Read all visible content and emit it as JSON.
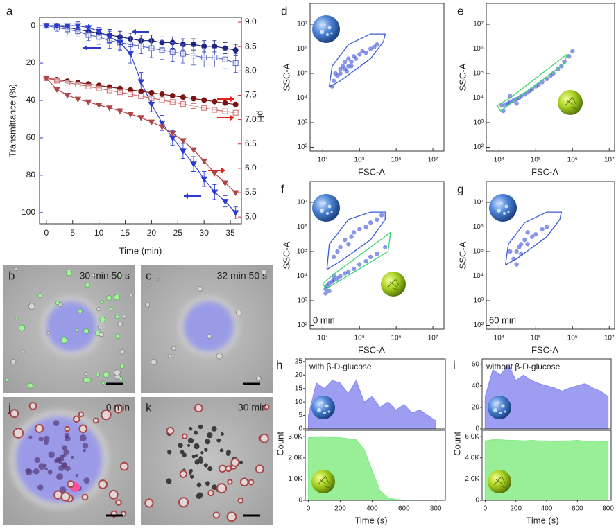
{
  "chart_data": [
    {
      "type": "line",
      "panel": "a",
      "xlabel": "Time (min)",
      "ylabel": "Transmittance (%)",
      "y2label": "pH",
      "ycolor": "#2b3bd1",
      "y2color": "#e8201a",
      "x": [
        0,
        2,
        4,
        6,
        8,
        10,
        12,
        14,
        16,
        18,
        20,
        22,
        24,
        26,
        28,
        30,
        32,
        34,
        36
      ],
      "xlim": [
        -1.3,
        37.1
      ],
      "xticks": [
        0,
        5,
        10,
        15,
        20,
        25,
        30,
        35
      ],
      "ylim": [
        106,
        -4.5
      ],
      "yticks": [
        0,
        20,
        40,
        60,
        80,
        100
      ],
      "y2lim": [
        4.86,
        9.1
      ],
      "y2ticks": [
        {
          "value": 5,
          "label": "5.0"
        },
        5.5,
        {
          "value": 6,
          "label": "6.0"
        },
        6.5,
        {
          "value": 7,
          "label": "7.0"
        },
        7.5,
        {
          "value": 8,
          "label": "8.0"
        },
        8.5,
        {
          "value": 9,
          "label": "9.0"
        }
      ],
      "series": [
        {
          "color": "#1c2580",
          "marker": "circle",
          "filled": true,
          "values": [
            0,
            0,
            1,
            2,
            3,
            4,
            5,
            6,
            7,
            8,
            8,
            9,
            9,
            10,
            10,
            11,
            11,
            12,
            13
          ],
          "errors": [
            1,
            1,
            2,
            2,
            2,
            3,
            3,
            3,
            3,
            3,
            3,
            3,
            3,
            3,
            3,
            3,
            3,
            3,
            3
          ]
        },
        {
          "color": "#5566c8",
          "marker": "square",
          "filled": false,
          "values": [
            0,
            1,
            2,
            3,
            5,
            6,
            8,
            9,
            10,
            11,
            12,
            13,
            14,
            15,
            16,
            17,
            17,
            18,
            20
          ],
          "errors": [
            1,
            2,
            3,
            3,
            3,
            4,
            4,
            4,
            4,
            4,
            5,
            5,
            5,
            5,
            5,
            5,
            5,
            5,
            5
          ]
        },
        {
          "color": "#2b3bd1",
          "marker": "triangle-down",
          "filled": true,
          "values": [
            0,
            0,
            0,
            0,
            1,
            3,
            6,
            9,
            15,
            30,
            42,
            52,
            60,
            67,
            74,
            82,
            89,
            94,
            100
          ],
          "errors": [
            1,
            1,
            1,
            2,
            2,
            2,
            3,
            4,
            5,
            5,
            4,
            4,
            4,
            4,
            4,
            4,
            4,
            3,
            3
          ]
        },
        {
          "color": "#7a1515",
          "marker": "circle",
          "filled": true,
          "axis": "y2",
          "values": [
            7.85,
            7.82,
            7.79,
            7.76,
            7.73,
            7.7,
            7.67,
            7.64,
            7.61,
            7.58,
            7.55,
            7.52,
            7.49,
            7.46,
            7.43,
            7.4,
            7.37,
            7.34,
            7.31
          ]
        },
        {
          "color": "#d26a6a",
          "marker": "square",
          "filled": false,
          "axis": "y2",
          "values": [
            7.85,
            7.8,
            7.76,
            7.72,
            7.68,
            7.64,
            7.6,
            7.56,
            7.52,
            7.48,
            7.44,
            7.4,
            7.36,
            7.32,
            7.28,
            7.24,
            7.2,
            7.17,
            7.14
          ]
        },
        {
          "color": "#b04545",
          "marker": "triangle-down",
          "filled": true,
          "axis": "y2",
          "values": [
            7.85,
            7.62,
            7.5,
            7.42,
            7.36,
            7.3,
            7.24,
            7.18,
            7.11,
            7.04,
            6.95,
            6.85,
            6.72,
            6.57,
            6.38,
            6.15,
            5.9,
            5.7,
            5.5
          ]
        }
      ]
    },
    {
      "type": "scatter",
      "panel": "d",
      "xlabel": "FSC-A",
      "ylabel": "SSC-A",
      "xscale": "log",
      "yscale": "log",
      "color": "#2a3fd6",
      "xlim": [
        4500,
        20000000.0
      ],
      "ylim": [
        70,
        70000000.0
      ],
      "xticks": [
        {
          "value": 10000.0,
          "label": "10⁴"
        },
        {
          "value": 100000.0,
          "label": "10⁵"
        },
        {
          "value": 1000000.0,
          "label": "10⁶"
        },
        {
          "value": 10000000.0,
          "label": "10⁷"
        }
      ],
      "yticks": [
        {
          "value": 100.0,
          "label": "10²"
        },
        {
          "value": 1000.0,
          "label": "10³"
        },
        {
          "value": 10000.0,
          "label": "10⁴"
        },
        {
          "value": 100000.0,
          "label": "10⁵"
        },
        {
          "value": 1000000.0,
          "label": "10⁶"
        },
        {
          "value": 10000000.0,
          "label": "10⁷"
        }
      ],
      "x": [
        20000.0,
        25000.0,
        30000.0,
        30000.0,
        35000.0,
        40000.0,
        40000.0,
        50000.0,
        50000.0,
        60000.0,
        70000.0,
        80000.0,
        100000.0,
        120000.0,
        150000.0,
        200000.0,
        250000.0,
        300000.0,
        18000.0,
        22000.0,
        45000.0,
        60000.0
      ],
      "values": [
        50000.0,
        80000.0,
        100000.0,
        150000.0,
        200000.0,
        150000.0,
        300000.0,
        200000.0,
        400000.0,
        300000.0,
        500000.0,
        400000.0,
        600000.0,
        800000.0,
        700000.0,
        1000000.0,
        1200000.0,
        1500000.0,
        30000.0,
        100000.0,
        120000.0,
        200000.0
      ],
      "gates": [
        {
          "color": "#3a5bd8",
          "x": [
            15000.0,
            18000.0,
            50000.0,
            200000.0,
            500000.0,
            450000.0,
            200000.0,
            30000.0,
            16000.0
          ],
          "y": [
            30000.0,
            200000.0,
            1500000.0,
            4000000.0,
            4000000.0,
            2000000.0,
            400000.0,
            50000.0,
            30000.0
          ]
        }
      ]
    },
    {
      "type": "scatter",
      "panel": "e",
      "xlabel": "FSC-A",
      "ylabel": "SSC-A",
      "xscale": "log",
      "yscale": "log",
      "color": "#2a3fd6",
      "xlim": [
        4500,
        14000000.0
      ],
      "ylim": [
        70,
        70000000.0
      ],
      "xticks": [
        {
          "value": 10000.0,
          "label": "10⁴"
        },
        {
          "value": 100000.0,
          "label": "10⁵"
        },
        {
          "value": 1000000.0,
          "label": "10⁶"
        },
        {
          "value": 10000000.0,
          "label": "10⁷"
        }
      ],
      "yticks": [
        {
          "value": 100.0,
          "label": "10²"
        },
        {
          "value": 1000.0,
          "label": "10³"
        },
        {
          "value": 10000.0,
          "label": "10⁴"
        },
        {
          "value": 100000.0,
          "label": "10⁵"
        },
        {
          "value": 1000000.0,
          "label": "10⁶"
        },
        {
          "value": 10000000.0,
          "label": "10⁷"
        }
      ],
      "x": [
        12000.0,
        15000.0,
        18000.0,
        20000.0,
        25000.0,
        30000.0,
        35000.0,
        40000.0,
        50000.0,
        60000.0,
        70000.0,
        80000.0,
        100000.0,
        120000.0,
        150000.0,
        200000.0,
        250000.0,
        300000.0,
        400000.0,
        500000.0,
        600000.0,
        800000.0,
        1000000.0,
        13000.0,
        20000.0,
        30000.0
      ],
      "values": [
        5000.0,
        5500.0,
        6000.0,
        7000.0,
        8000.0,
        9000.0,
        10000.0,
        12000.0,
        14000.0,
        17000.0,
        20000.0,
        23000.0,
        30000.0,
        35000.0,
        45000.0,
        60000.0,
        80000.0,
        100000.0,
        150000.0,
        200000.0,
        300000.0,
        500000.0,
        800000.0,
        3000.0,
        12000.0,
        6000.0
      ],
      "gates": [
        {
          "color": "#39d46a",
          "x": [
            9000.0,
            11000.0,
            600000.0,
            700000.0,
            20000.0
          ],
          "y": [
            5000.0,
            3000.0,
            250000.0,
            600000.0,
            10000.0
          ]
        }
      ]
    },
    {
      "type": "scatter",
      "panel": "f",
      "xlabel": "FSC-A",
      "ylabel": "SSC-A",
      "xscale": "log",
      "yscale": "log",
      "color": "#2a3fd6",
      "annotation": "0 min",
      "xlim": [
        4500,
        20000000.0
      ],
      "ylim": [
        70,
        70000000.0
      ],
      "xticks": [
        {
          "value": 10000.0,
          "label": "10⁴"
        },
        {
          "value": 100000.0,
          "label": "10⁵"
        },
        {
          "value": 1000000.0,
          "label": "10⁶"
        },
        {
          "value": 10000000.0,
          "label": "10⁷"
        }
      ],
      "yticks": [
        {
          "value": 100.0,
          "label": "10²"
        },
        {
          "value": 1000.0,
          "label": "10³"
        },
        {
          "value": 10000.0,
          "label": "10⁴"
        },
        {
          "value": 100000.0,
          "label": "10⁵"
        },
        {
          "value": 1000000.0,
          "label": "10⁶"
        },
        {
          "value": 10000000.0,
          "label": "10⁷"
        }
      ],
      "x": [
        20000.0,
        30000.0,
        40000.0,
        50000.0,
        70000.0,
        100000.0,
        150000.0,
        200000.0,
        300000.0,
        400000.0,
        25000.0,
        60000.0,
        12000.0,
        13000.0,
        15000.0,
        18000.0,
        20000.0,
        25000.0,
        30000.0,
        40000.0,
        50000.0,
        70000.0,
        100000.0,
        150000.0,
        200000.0,
        300000.0,
        500000.0,
        12000.0,
        15000.0,
        20000.0
      ],
      "values": [
        60000.0,
        150000.0,
        300000.0,
        200000.0,
        600000.0,
        800000.0,
        1000000.0,
        1500000.0,
        2000000.0,
        3000000.0,
        100000.0,
        400000.0,
        3000.0,
        4000.0,
        5000.0,
        6000.0,
        7000.0,
        8000.0,
        10000.0,
        13000.0,
        15000.0,
        20000.0,
        30000.0,
        40000.0,
        60000.0,
        80000.0,
        150000.0,
        2000.0,
        2500.0,
        10000.0
      ],
      "gates": [
        {
          "color": "#3a5bd8",
          "x": [
            13000.0,
            15000.0,
            50000.0,
            200000.0,
            500000.0,
            500000.0,
            200000.0,
            30000.0,
            14000.0
          ],
          "y": [
            20000.0,
            200000.0,
            2000000.0,
            4000000.0,
            4000000.0,
            2000000.0,
            300000.0,
            40000.0,
            20000.0
          ]
        },
        {
          "color": "#39d46a",
          "x": [
            10000.0,
            12000.0,
            600000.0,
            700000.0,
            20000.0
          ],
          "y": [
            5000.0,
            3000.0,
            100000.0,
            600000.0,
            12000.0
          ]
        }
      ]
    },
    {
      "type": "scatter",
      "panel": "g",
      "xlabel": "FSC-A",
      "ylabel": "SSC-A",
      "xscale": "log",
      "yscale": "log",
      "color": "#2a3fd6",
      "annotation": "60 min",
      "xlim": [
        4500,
        14000000.0
      ],
      "ylim": [
        70,
        70000000.0
      ],
      "xticks": [
        {
          "value": 10000.0,
          "label": "10⁴"
        },
        {
          "value": 100000.0,
          "label": "10⁵"
        },
        {
          "value": 1000000.0,
          "label": "10⁶"
        },
        {
          "value": 10000000.0,
          "label": "10⁷"
        }
      ],
      "yticks": [
        {
          "value": 100.0,
          "label": "10²"
        },
        {
          "value": 1000.0,
          "label": "10³"
        },
        {
          "value": 10000.0,
          "label": "10⁴"
        },
        {
          "value": 100000.0,
          "label": "10⁵"
        },
        {
          "value": 1000000.0,
          "label": "10⁶"
        },
        {
          "value": 10000000.0,
          "label": "10⁷"
        }
      ],
      "x": [
        25000.0,
        30000.0,
        35000.0,
        40000.0,
        50000.0,
        60000.0,
        80000.0,
        100000.0,
        150000.0,
        200000.0,
        30000.0,
        40000.0,
        20000.0,
        60000.0
      ],
      "values": [
        50000.0,
        100000.0,
        150000.0,
        200000.0,
        300000.0,
        200000.0,
        400000.0,
        500000.0,
        800000.0,
        1000000.0,
        30000.0,
        80000.0,
        100000.0,
        600000.0
      ],
      "gates": [
        {
          "color": "#3a5bd8",
          "x": [
            15000.0,
            18000.0,
            50000.0,
            200000.0,
            500000.0,
            450000.0,
            200000.0,
            30000.0,
            16000.0
          ],
          "y": [
            30000.0,
            200000.0,
            1500000.0,
            4000000.0,
            4000000.0,
            2000000.0,
            400000.0,
            50000.0,
            30000.0
          ]
        }
      ]
    },
    {
      "type": "area",
      "panel": "h",
      "annotation": "with β-D-glucose",
      "xlabel": "Time (s)",
      "ylabel": "Count",
      "x": [
        0,
        50,
        100,
        150,
        200,
        250,
        300,
        350,
        400,
        450,
        500,
        550,
        600,
        650,
        700,
        750,
        800
      ],
      "xlim": [
        -20,
        860
      ],
      "xticks": [
        0,
        200,
        400,
        600,
        800
      ],
      "subplots": [
        {
          "color": "#8c8cf0",
          "ylim": [
            0,
            26
          ],
          "yticks": [
            0,
            5,
            10,
            15,
            20,
            25
          ],
          "values": [
            5,
            17,
            15,
            18,
            17,
            13,
            18,
            10,
            12,
            8,
            10,
            7,
            9,
            6,
            7,
            5,
            3
          ]
        },
        {
          "color": "#86ec86",
          "ylim": [
            0,
            3300
          ],
          "yticks": [
            0,
            {
              "value": 1000,
              "label": "1.0K"
            },
            {
              "value": 2000,
              "label": "2.0K"
            },
            {
              "value": 3000,
              "label": "3.0K"
            }
          ],
          "values": [
            2950,
            3000,
            3000,
            2980,
            2950,
            2900,
            2850,
            2400,
            1400,
            450,
            120,
            40,
            15,
            8,
            5,
            3,
            2
          ]
        }
      ]
    },
    {
      "type": "area",
      "panel": "i",
      "annotation": "without β-D-glucose",
      "xlabel": "Time (s)",
      "ylabel": "Count",
      "x": [
        0,
        50,
        100,
        150,
        200,
        250,
        300,
        350,
        400,
        450,
        500,
        550,
        600,
        650,
        700,
        750,
        800
      ],
      "xlim": [
        -20,
        820
      ],
      "xticks": [
        0,
        200,
        400,
        600,
        800
      ],
      "subplots": [
        {
          "color": "#8c8cf0",
          "ylim": [
            0,
            65
          ],
          "yticks": [
            0,
            20,
            40,
            60
          ],
          "values": [
            30,
            55,
            50,
            60,
            45,
            50,
            45,
            42,
            40,
            38,
            35,
            38,
            40,
            42,
            38,
            35,
            30
          ]
        },
        {
          "color": "#86ec86",
          "ylim": [
            0,
            6600
          ],
          "yticks": [
            0,
            {
              "value": 2000,
              "label": "2.0K"
            },
            {
              "value": 4000,
              "label": "4.0K"
            },
            {
              "value": 6000,
              "label": "6.0K"
            }
          ],
          "values": [
            5600,
            5700,
            5700,
            5650,
            5650,
            5600,
            5650,
            5600,
            5600,
            5550,
            5600,
            5600,
            5650,
            5550,
            5600,
            5550,
            5500
          ]
        }
      ]
    }
  ],
  "micrographs": [
    {
      "panel": "b",
      "time": "30 min 50 s"
    },
    {
      "panel": "c",
      "time": "32 min 50 s"
    },
    {
      "panel": "j",
      "time": "0 min"
    },
    {
      "panel": "k",
      "time": "30 min"
    }
  ]
}
